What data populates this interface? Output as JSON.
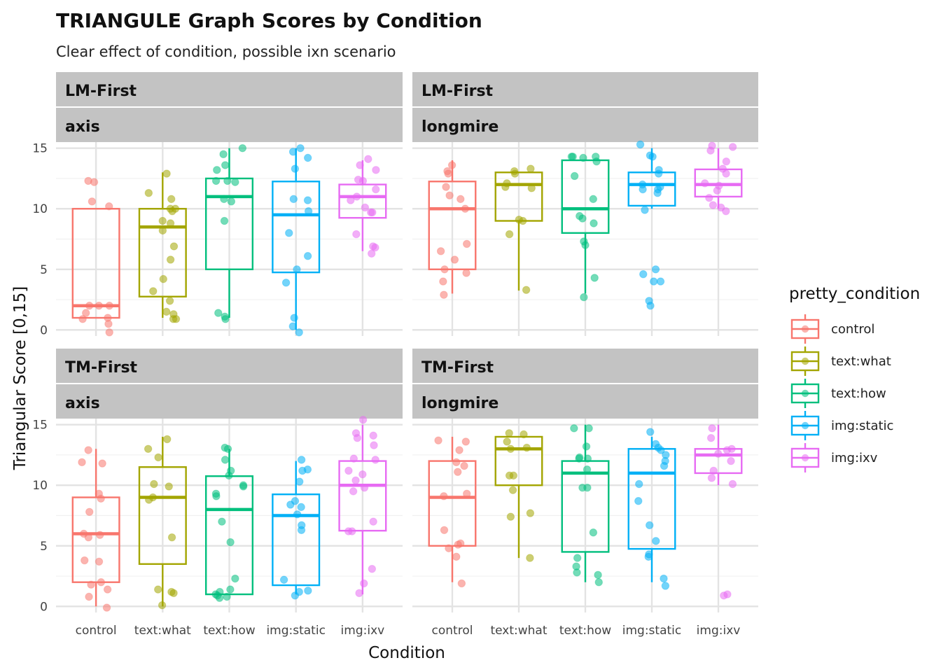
{
  "chart_data": {
    "type": "box",
    "title": "TRIANGULE Graph Scores by Condition",
    "subtitle": "Clear effect of condition, possible ixn scenario",
    "xlabel": "Condition",
    "ylabel": "Triangular Score [0,15]",
    "ylim": [
      -0.5,
      15.5
    ],
    "yticks": [
      0,
      5,
      10,
      15
    ],
    "categories": [
      "control",
      "text:what",
      "text:how",
      "img:static",
      "img:ixv"
    ],
    "colors": {
      "control": "#F8766D",
      "text:what": "#A3A500",
      "text:how": "#00BF7D",
      "img:static": "#00B0F6",
      "img:ixv": "#E76BF3"
    },
    "legend": {
      "title": "pretty_condition",
      "position": "right",
      "items": [
        "control",
        "text:what",
        "text:how",
        "img:static",
        "img:ixv"
      ]
    },
    "grid": true,
    "panels": [
      {
        "strip": [
          "LM-First",
          "axis"
        ],
        "boxes": {
          "control": {
            "q1": 1,
            "median": 2,
            "q3": 10,
            "lo": 1,
            "hi": 10
          },
          "text:what": {
            "q1": 2.75,
            "median": 8.5,
            "q3": 10,
            "lo": 1,
            "hi": 13
          },
          "text:how": {
            "q1": 5,
            "median": 11,
            "q3": 12.5,
            "lo": 1,
            "hi": 15
          },
          "img:static": {
            "q1": 4.75,
            "median": 9.5,
            "q3": 12.25,
            "lo": 0,
            "hi": 15
          },
          "img:ixv": {
            "q1": 9.25,
            "median": 11,
            "q3": 12,
            "lo": 6.5,
            "hi": 14
          }
        },
        "points": {
          "control": [
            12.2,
            12.3,
            10.6,
            10.2,
            2,
            2,
            2,
            1.4,
            0.9,
            1,
            0.5,
            -0.2
          ],
          "text:what": [
            12.9,
            11.3,
            10.8,
            10,
            10,
            9.8,
            9,
            8.8,
            8.2,
            6.9,
            5.8,
            4.2,
            3.2,
            2.4,
            1.5,
            1.3,
            0.9,
            0.9
          ],
          "text:how": [
            15,
            14.5,
            13.6,
            13.2,
            12.3,
            12.3,
            12.2,
            10.8,
            10.6,
            9,
            1.4,
            1.1,
            0.9
          ],
          "img:static": [
            15,
            14.7,
            14.2,
            13.3,
            10.8,
            10.7,
            9.8,
            8,
            6.1,
            5,
            3.9,
            1,
            0.3,
            -0.2
          ],
          "img:ixv": [
            14.1,
            13.6,
            13.2,
            12.4,
            12.3,
            11.6,
            11,
            10.7,
            10.1,
            9.7,
            9.7,
            7.9,
            6.8,
            6.9,
            6.3
          ]
        }
      },
      {
        "strip": [
          "LM-First",
          "longmire"
        ],
        "boxes": {
          "control": {
            "q1": 5,
            "median": 10,
            "q3": 12.25,
            "lo": 3,
            "hi": 14
          },
          "text:what": {
            "q1": 9,
            "median": 12,
            "q3": 13,
            "lo": 3.25,
            "hi": 13
          },
          "text:how": {
            "q1": 8,
            "median": 10,
            "q3": 14,
            "lo": 3,
            "hi": 14
          },
          "img:static": {
            "q1": 10.25,
            "median": 12,
            "q3": 13,
            "lo": 10,
            "hi": 15
          },
          "img:ixv": {
            "q1": 11,
            "median": 12,
            "q3": 13.25,
            "lo": 10,
            "hi": 15
          }
        },
        "points": {
          "control": [
            13.6,
            13.1,
            12.9,
            11.8,
            11.1,
            10.8,
            10,
            7.1,
            6.5,
            5.8,
            5,
            4.7,
            4,
            2.9
          ],
          "text:what": [
            13.3,
            13.1,
            12.9,
            12.1,
            11.8,
            11.7,
            9.1,
            9,
            7.9,
            3.3
          ],
          "text:how": [
            14.3,
            14.2,
            14.3,
            14.3,
            13.9,
            12.7,
            10.8,
            9.4,
            9.2,
            8.8,
            7.3,
            7,
            4.3,
            2.7
          ],
          "img:static": [
            15.3,
            14.4,
            14.3,
            13.2,
            12.9,
            12,
            11.8,
            11.6,
            11.6,
            11.3,
            9.9,
            5,
            4.6,
            4,
            4,
            2.4,
            2
          ],
          "img:ixv": [
            15.2,
            15.1,
            14.8,
            13.9,
            13.3,
            12.9,
            12.1,
            11.9,
            11.5,
            10.9,
            10.3,
            10.1,
            9.8
          ]
        }
      },
      {
        "strip": [
          "TM-First",
          "axis"
        ],
        "boxes": {
          "control": {
            "q1": 2,
            "median": 6,
            "q3": 9,
            "lo": 0,
            "hi": 13
          },
          "text:what": {
            "q1": 3.5,
            "median": 9,
            "q3": 11.5,
            "lo": 0,
            "hi": 14
          },
          "text:how": {
            "q1": 1,
            "median": 8,
            "q3": 10.75,
            "lo": 1,
            "hi": 13
          },
          "img:static": {
            "q1": 1.75,
            "median": 7.5,
            "q3": 9.25,
            "lo": 1,
            "hi": 12
          },
          "img:ixv": {
            "q1": 6.25,
            "median": 10,
            "q3": 12,
            "lo": 1,
            "hi": 15
          }
        },
        "points": {
          "control": [
            12.9,
            11.9,
            11.8,
            9.3,
            8.9,
            7.8,
            6,
            5.9,
            5.7,
            3.8,
            3.7,
            2,
            1.8,
            1.4,
            0.8,
            -0.1
          ],
          "text:what": [
            13.8,
            13,
            12.3,
            10.1,
            9.9,
            9,
            8.8,
            5.7,
            1.4,
            1.2,
            1.1,
            0.1
          ],
          "text:how": [
            13.1,
            13,
            12.1,
            11.2,
            10.8,
            10,
            9.9,
            9.3,
            9.1,
            7,
            5.3,
            2.3,
            1.4,
            1.2,
            1,
            0.9,
            0.8,
            0.7
          ],
          "img:static": [
            12.1,
            11.3,
            11.2,
            10.3,
            8.7,
            8.4,
            8.2,
            7.6,
            6.7,
            6.3,
            2.2,
            1.3,
            1.2,
            0.9
          ],
          "img:ixv": [
            15.4,
            14.3,
            14.1,
            13.9,
            13.3,
            12.2,
            12.1,
            11.2,
            10.9,
            10.4,
            9.8,
            9.5,
            7,
            6.2,
            6.2,
            3.1,
            1.9,
            1.1
          ]
        }
      },
      {
        "strip": [
          "TM-First",
          "longmire"
        ],
        "boxes": {
          "control": {
            "q1": 5,
            "median": 9,
            "q3": 12,
            "lo": 2,
            "hi": 14
          },
          "text:what": {
            "q1": 10,
            "median": 13,
            "q3": 14,
            "lo": 4,
            "hi": 14
          },
          "text:how": {
            "q1": 4.5,
            "median": 11,
            "q3": 12,
            "lo": 2,
            "hi": 15
          },
          "img:static": {
            "q1": 4.75,
            "median": 11,
            "q3": 13,
            "lo": 2,
            "hi": 14
          },
          "img:ixv": {
            "q1": 11,
            "median": 12.5,
            "q3": 13,
            "lo": 10,
            "hi": 15
          }
        },
        "points": {
          "control": [
            13.7,
            13.6,
            12.9,
            11.9,
            11.6,
            11.1,
            9.3,
            9.1,
            6.3,
            5.2,
            5.1,
            4.8,
            4.1,
            1.9
          ],
          "text:what": [
            14.3,
            14.2,
            13.6,
            13.1,
            13,
            10.8,
            10.8,
            9.6,
            7.7,
            7.4,
            4
          ],
          "text:how": [
            14.7,
            14.7,
            13.2,
            12.3,
            12.2,
            12.2,
            11.3,
            9.8,
            9.8,
            6.1,
            4,
            3.3,
            2.8,
            2.6,
            2
          ],
          "img:static": [
            14.4,
            13.4,
            13.1,
            12.9,
            12.5,
            12,
            11.6,
            10.1,
            8.7,
            6.7,
            5.4,
            4.3,
            4.1,
            2.3,
            1.7
          ],
          "img:ixv": [
            14.7,
            13.9,
            13,
            12.9,
            12.6,
            12,
            11.2,
            10.6,
            10.1,
            1,
            0.9
          ]
        }
      }
    ]
  }
}
